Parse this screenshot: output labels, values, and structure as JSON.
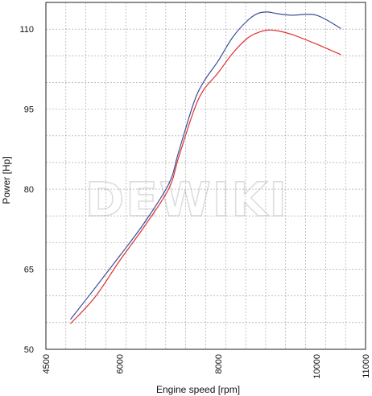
{
  "watermark": "DEWIKI",
  "chart_data": {
    "type": "line",
    "title": "",
    "xlabel": "Engine speed [rpm]",
    "ylabel": "Power [Hp]",
    "xlim": [
      4500,
      11000
    ],
    "ylim": [
      50,
      115
    ],
    "x_ticks": [
      "4500",
      "6000",
      "8000",
      "10000",
      "11000"
    ],
    "x_tick_values": [
      4500,
      6000,
      8000,
      10000,
      11000
    ],
    "y_ticks": [
      "50",
      "65",
      "80",
      "95",
      "110"
    ],
    "y_tick_values": [
      50,
      65,
      80,
      95,
      110
    ],
    "grid": true,
    "series": [
      {
        "color": "#3a4f9a",
        "x": [
          5000,
          5500,
          6000,
          6500,
          7000,
          7200,
          7500,
          7700,
          8000,
          8300,
          8600,
          8800,
          9000,
          9200,
          9500,
          10000,
          10500
        ],
        "y": [
          55.6,
          61.5,
          67.5,
          73.7,
          81.0,
          87.0,
          96.0,
          100.0,
          104.0,
          108.5,
          111.6,
          112.9,
          113.2,
          112.9,
          112.6,
          112.6,
          110.1
        ]
      },
      {
        "color": "#e03030",
        "x": [
          5000,
          5500,
          6000,
          6500,
          7000,
          7200,
          7500,
          7700,
          8000,
          8300,
          8600,
          8800,
          9000,
          9200,
          9500,
          10000,
          10500
        ],
        "y": [
          54.8,
          59.8,
          66.6,
          73.0,
          80.1,
          86.0,
          94.5,
          98.5,
          101.8,
          105.5,
          108.3,
          109.3,
          109.8,
          109.7,
          109.0,
          107.2,
          105.2
        ]
      }
    ]
  }
}
